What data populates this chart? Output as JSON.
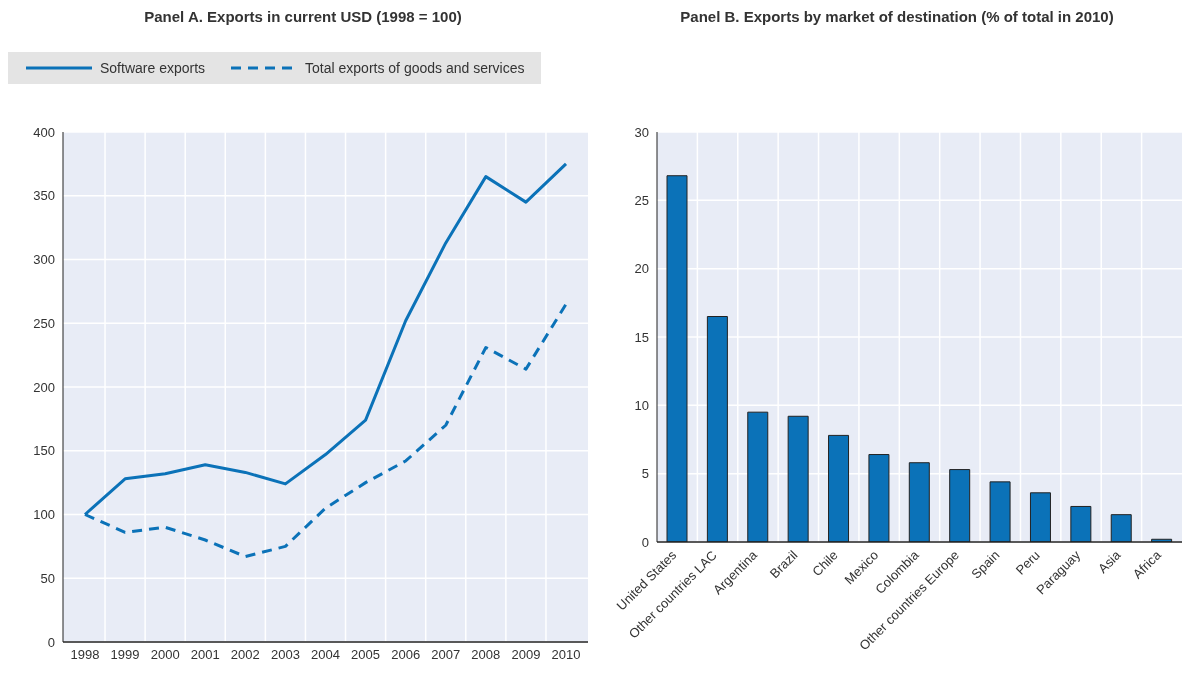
{
  "chart_data": [
    {
      "type": "line",
      "title": "Panel A. Exports in current USD (1998 = 100)",
      "categories": [
        "1998",
        "1999",
        "2000",
        "2001",
        "2002",
        "2003",
        "2004",
        "2005",
        "2006",
        "2007",
        "2008",
        "2009",
        "2010"
      ],
      "series": [
        {
          "name": "Software exports",
          "color": "#0b72b8",
          "line_style": "solid",
          "values": [
            100,
            128,
            132,
            139,
            133,
            124,
            147,
            174,
            252,
            313,
            365,
            345,
            375
          ]
        },
        {
          "name": "Total exports of goods and services",
          "color": "#0b72b8",
          "line_style": "dashed",
          "values": [
            100,
            86,
            90,
            80,
            67,
            75,
            105,
            125,
            142,
            170,
            231,
            214,
            265
          ]
        }
      ],
      "ylim": [
        0,
        400
      ],
      "yticks": [
        0,
        50,
        100,
        150,
        200,
        250,
        300,
        350,
        400
      ],
      "grid": true,
      "legend": "top",
      "marker": "none"
    },
    {
      "type": "bar",
      "title": "Panel B. Exports by market of destination (% of total in 2010)",
      "categories": [
        "United States",
        "Other countries LAC",
        "Argentina",
        "Brazil",
        "Chile",
        "Mexico",
        "Colombia",
        "Other countries Europe",
        "Spain",
        "Peru",
        "Paraguay",
        "Asia",
        "Africa"
      ],
      "values": [
        26.8,
        16.5,
        9.5,
        9.2,
        7.8,
        6.4,
        5.8,
        5.3,
        4.4,
        3.6,
        2.6,
        2.0,
        0.2
      ],
      "color": "#0b72b8",
      "ylim": [
        0,
        30
      ],
      "yticks": [
        0,
        5,
        10,
        15,
        20,
        25,
        30
      ],
      "grid": true
    }
  ]
}
